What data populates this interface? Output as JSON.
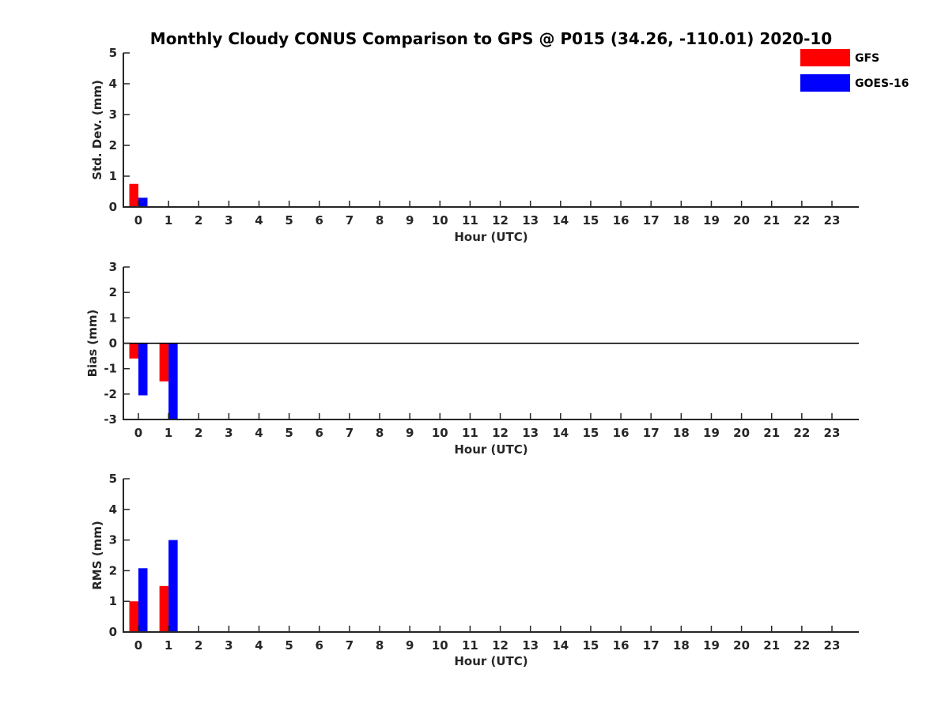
{
  "chart_data": {
    "title": "Monthly Cloudy CONUS Comparison to GPS @ P015 (34.26, -110.01) 2020-10",
    "type": "bar",
    "legend": {
      "position": "top-right",
      "entries": [
        {
          "name": "GFS",
          "color": "#ff0000"
        },
        {
          "name": "GOES-16",
          "color": "#0000ff"
        }
      ]
    },
    "categories": [
      "0",
      "1",
      "2",
      "3",
      "4",
      "5",
      "6",
      "7",
      "8",
      "9",
      "10",
      "11",
      "12",
      "13",
      "14",
      "15",
      "16",
      "17",
      "18",
      "19",
      "20",
      "21",
      "22",
      "23"
    ],
    "panels": [
      {
        "ylabel": "Std. Dev. (mm)",
        "xlabel": "Hour (UTC)",
        "ylim": [
          0,
          5
        ],
        "yticks": [
          "0",
          "1",
          "2",
          "3",
          "4",
          "5"
        ],
        "zero_line": false,
        "series": [
          {
            "name": "GFS",
            "values": [
              0.75,
              null,
              null,
              null,
              null,
              null,
              null,
              null,
              null,
              null,
              null,
              null,
              null,
              null,
              null,
              null,
              null,
              null,
              null,
              null,
              null,
              null,
              null,
              null
            ]
          },
          {
            "name": "GOES-16",
            "values": [
              0.3,
              null,
              null,
              null,
              null,
              null,
              null,
              null,
              null,
              null,
              null,
              null,
              null,
              null,
              null,
              null,
              null,
              null,
              null,
              null,
              null,
              null,
              null,
              null
            ]
          }
        ]
      },
      {
        "ylabel": "Bias (mm)",
        "xlabel": "Hour (UTC)",
        "ylim": [
          -3,
          3
        ],
        "yticks": [
          "-3",
          "-2",
          "-1",
          "0",
          "1",
          "2",
          "3"
        ],
        "zero_line": true,
        "series": [
          {
            "name": "GFS",
            "values": [
              -0.6,
              -1.5,
              null,
              null,
              null,
              null,
              null,
              null,
              null,
              null,
              null,
              null,
              null,
              null,
              null,
              null,
              null,
              null,
              null,
              null,
              null,
              null,
              null,
              null
            ]
          },
          {
            "name": "GOES-16",
            "values": [
              -2.05,
              -3.0,
              null,
              null,
              null,
              null,
              null,
              null,
              null,
              null,
              null,
              null,
              null,
              null,
              null,
              null,
              null,
              null,
              null,
              null,
              null,
              null,
              null,
              null
            ]
          }
        ]
      },
      {
        "ylabel": "RMS (mm)",
        "xlabel": "Hour (UTC)",
        "ylim": [
          0,
          5
        ],
        "yticks": [
          "0",
          "1",
          "2",
          "3",
          "4",
          "5"
        ],
        "zero_line": false,
        "series": [
          {
            "name": "GFS",
            "values": [
              1.0,
              1.5,
              null,
              null,
              null,
              null,
              null,
              null,
              null,
              null,
              null,
              null,
              null,
              null,
              null,
              null,
              null,
              null,
              null,
              null,
              null,
              null,
              null,
              null
            ]
          },
          {
            "name": "GOES-16",
            "values": [
              2.08,
              3.0,
              null,
              null,
              null,
              null,
              null,
              null,
              null,
              null,
              null,
              null,
              null,
              null,
              null,
              null,
              null,
              null,
              null,
              null,
              null,
              null,
              null,
              null
            ]
          }
        ]
      }
    ]
  }
}
